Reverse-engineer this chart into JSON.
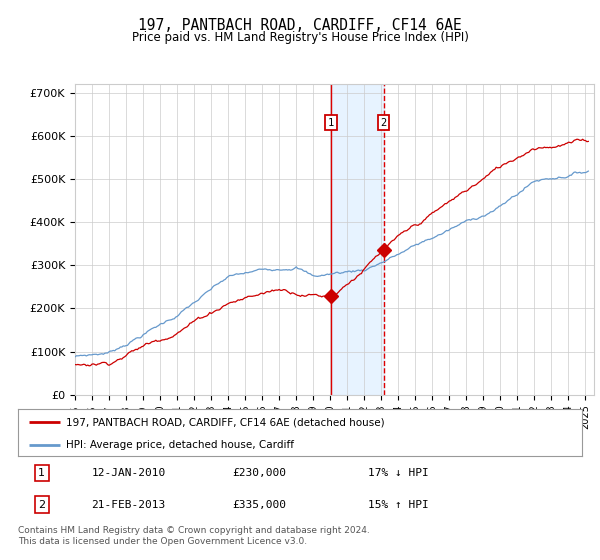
{
  "title": "197, PANTBACH ROAD, CARDIFF, CF14 6AE",
  "subtitle": "Price paid vs. HM Land Registry's House Price Index (HPI)",
  "ylabel_ticks": [
    "£0",
    "£100K",
    "£200K",
    "£300K",
    "£400K",
    "£500K",
    "£600K",
    "£700K"
  ],
  "ytick_values": [
    0,
    100000,
    200000,
    300000,
    400000,
    500000,
    600000,
    700000
  ],
  "ylim": [
    0,
    720000
  ],
  "xlim_start": 1995.0,
  "xlim_end": 2025.5,
  "transaction1": {
    "date_num": 2010.04,
    "price": 230000,
    "label": "1"
  },
  "transaction2": {
    "date_num": 2013.13,
    "price": 335000,
    "label": "2"
  },
  "legend_label_red": "197, PANTBACH ROAD, CARDIFF, CF14 6AE (detached house)",
  "legend_label_blue": "HPI: Average price, detached house, Cardiff",
  "table_row1": [
    "1",
    "12-JAN-2010",
    "£230,000",
    "17% ↓ HPI"
  ],
  "table_row2": [
    "2",
    "21-FEB-2013",
    "£335,000",
    "15% ↑ HPI"
  ],
  "footer": "Contains HM Land Registry data © Crown copyright and database right 2024.\nThis data is licensed under the Open Government Licence v3.0.",
  "red_color": "#cc0000",
  "blue_color": "#6699cc",
  "shade_color": "#ddeeff",
  "background_color": "#ffffff",
  "grid_color": "#cccccc"
}
